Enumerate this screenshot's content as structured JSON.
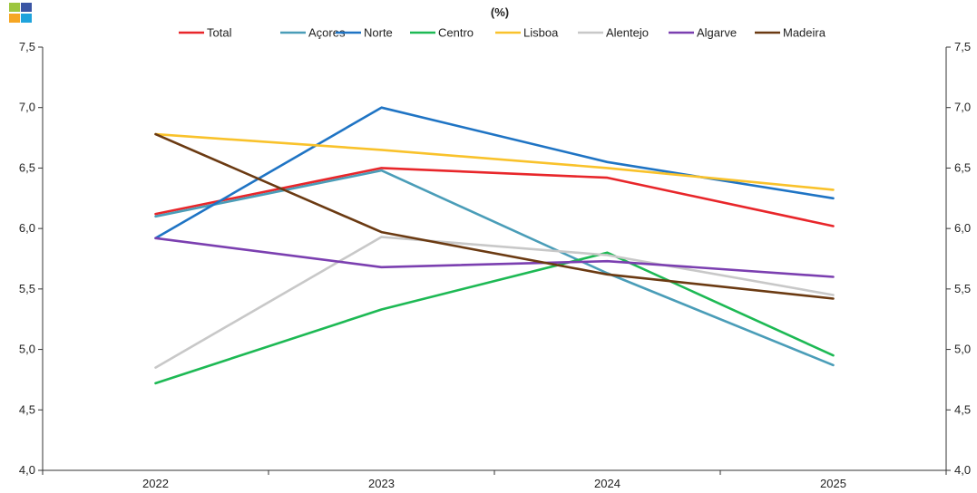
{
  "logo": {
    "icon": "four-squares-logo-icon",
    "colors": [
      "#9dc63f",
      "#3a55a4",
      "#f6a623",
      "#1fa3dc"
    ]
  },
  "chart_data": {
    "type": "line",
    "title": "(%)",
    "x": [
      "2022",
      "2023",
      "2024",
      "2025"
    ],
    "ylim": [
      4.0,
      7.5
    ],
    "yticks": [
      "4,0",
      "4,5",
      "5,0",
      "5,5",
      "6,0",
      "6,5",
      "7,0",
      "7,5"
    ],
    "ytick_values": [
      4.0,
      4.5,
      5.0,
      5.5,
      6.0,
      6.5,
      7.0,
      7.5
    ],
    "grid": false,
    "legend_position": "top",
    "secondary_y_axis": true,
    "series": [
      {
        "name": "Total",
        "color": "#e8262a",
        "values": [
          6.12,
          6.5,
          6.42,
          6.02
        ]
      },
      {
        "name": "Açores",
        "color": "#4a9db8",
        "values": [
          6.1,
          6.48,
          5.63,
          4.87
        ]
      },
      {
        "name": "Norte",
        "color": "#1f74c4",
        "values": [
          5.92,
          7.0,
          6.55,
          6.25
        ]
      },
      {
        "name": "Centro",
        "color": "#1db954",
        "values": [
          4.72,
          5.33,
          5.8,
          4.95
        ]
      },
      {
        "name": "Lisboa",
        "color": "#f9c22b",
        "values": [
          6.78,
          6.65,
          6.5,
          6.32
        ]
      },
      {
        "name": "Alentejo",
        "color": "#c8c8c8",
        "values": [
          4.85,
          5.93,
          5.78,
          5.45
        ]
      },
      {
        "name": "Algarve",
        "color": "#7b3fb0",
        "values": [
          5.92,
          5.68,
          5.73,
          5.6
        ]
      },
      {
        "name": "Madeira",
        "color": "#6b3a12",
        "values": [
          6.78,
          5.97,
          5.62,
          5.42
        ]
      }
    ]
  }
}
